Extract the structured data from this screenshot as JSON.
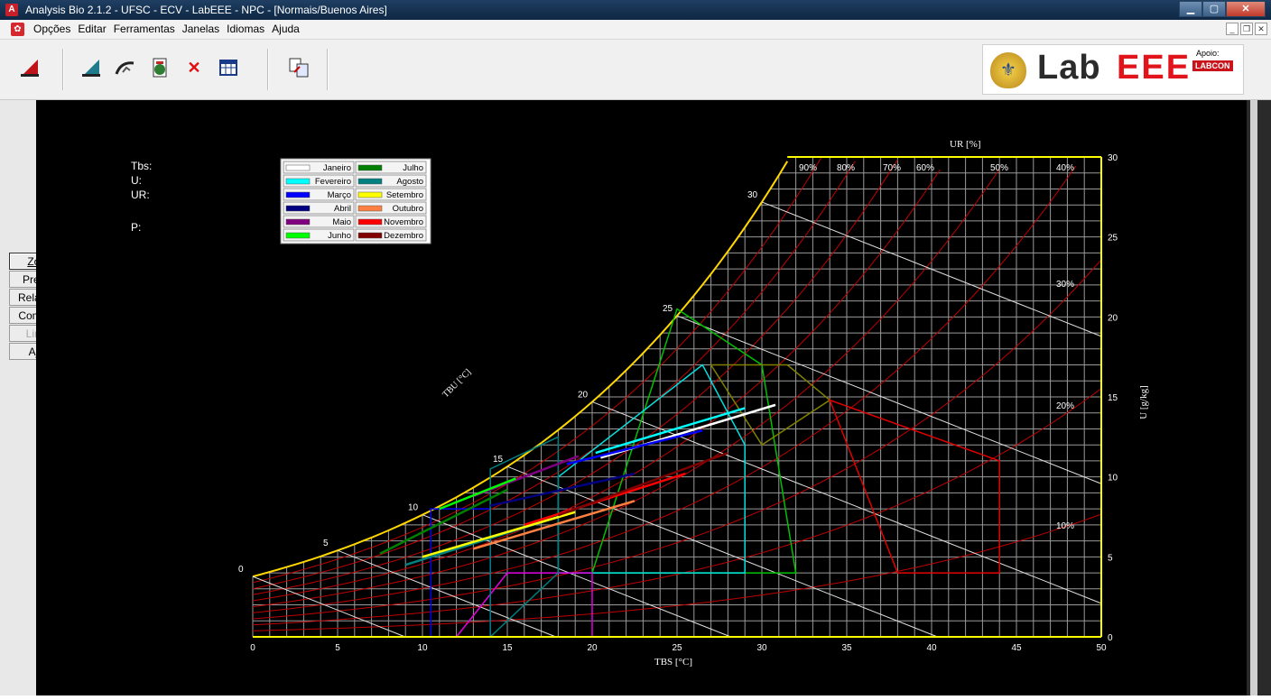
{
  "window": {
    "title": "Analysis Bio 2.1.2 - UFSC - ECV - LabEEE - NPC - [Normais/Buenos Aires]"
  },
  "menu": [
    "Opções",
    "Editar",
    "Ferramentas",
    "Janelas",
    "Idiomas",
    "Ajuda"
  ],
  "logo": {
    "lab": "Lab",
    "eee": "EEE",
    "apoio": "Apoio:",
    "labcon": "LABCON"
  },
  "side_buttons": [
    {
      "label": "Zonas",
      "state": "active"
    },
    {
      "label": "Pressão",
      "state": "normal"
    },
    {
      "label": "Relatorios",
      "state": "normal"
    },
    {
      "label": "Comparar",
      "state": "normal"
    },
    {
      "label": "Limpar",
      "state": "disabled"
    },
    {
      "label": "Ajuda",
      "state": "normal"
    }
  ],
  "readout": {
    "tbs": "Tbs:",
    "u": "U:",
    "ur": "UR:",
    "p": "P:"
  },
  "legend": [
    {
      "name": "Janeiro",
      "color": "#ffffff"
    },
    {
      "name": "Julho",
      "color": "#008000"
    },
    {
      "name": "Fevereiro",
      "color": "#00ffff"
    },
    {
      "name": "Agosto",
      "color": "#008080"
    },
    {
      "name": "Março",
      "color": "#0000ff"
    },
    {
      "name": "Setembro",
      "color": "#ffff00"
    },
    {
      "name": "Abril",
      "color": "#000080"
    },
    {
      "name": "Outubro",
      "color": "#ff8040"
    },
    {
      "name": "Maio",
      "color": "#800080"
    },
    {
      "name": "Novembro",
      "color": "#ff0000"
    },
    {
      "name": "Junho",
      "color": "#00ff00"
    },
    {
      "name": "Dezembro",
      "color": "#800000"
    }
  ],
  "chart_data": {
    "type": "psychrometric",
    "xlabel": "TBS [°C]",
    "ylabel": "U [g/kg]",
    "wet_bulb_label": "TBU [°C]",
    "rh_label": "UR [%]",
    "xlim": [
      0,
      50
    ],
    "ylim": [
      0,
      30
    ],
    "x_ticks": [
      0,
      5,
      10,
      15,
      20,
      25,
      30,
      35,
      40,
      45,
      50
    ],
    "y_ticks": [
      0,
      5,
      10,
      15,
      20,
      25,
      30
    ],
    "wet_bulb_ticks": [
      0,
      5,
      10,
      15,
      20,
      25,
      30
    ],
    "rh_top_labels": [
      "90%",
      "80%",
      "70%",
      "60%",
      "50%",
      "40%"
    ],
    "rh_side_labels": [
      "30%",
      "20%",
      "10%"
    ],
    "grid": true,
    "monthly_lines": [
      {
        "month": "Janeiro",
        "color": "#ffffff",
        "from": [
          20.5,
          11.2
        ],
        "to": [
          30.8,
          14.5
        ]
      },
      {
        "month": "Fevereiro",
        "color": "#00ffff",
        "from": [
          20.2,
          11.5
        ],
        "to": [
          29.0,
          14.3
        ]
      },
      {
        "month": "Março",
        "color": "#0000ff",
        "from": [
          18.5,
          10.8
        ],
        "to": [
          26.5,
          12.9
        ]
      },
      {
        "month": "Abril",
        "color": "#000080",
        "from": [
          14.0,
          8.2
        ],
        "to": [
          22.5,
          10.2
        ]
      },
      {
        "month": "Maio",
        "color": "#800080",
        "from": [
          13.0,
          8.8
        ],
        "to": [
          19.2,
          11.3
        ]
      },
      {
        "month": "Junho",
        "color": "#00ff00",
        "from": [
          11.0,
          8.0
        ],
        "to": [
          15.5,
          9.9
        ]
      },
      {
        "month": "Julho",
        "color": "#008000",
        "from": [
          7.5,
          5.2
        ],
        "to": [
          15.0,
          9.2
        ]
      },
      {
        "month": "Agosto",
        "color": "#008080",
        "from": [
          9.0,
          4.5
        ],
        "to": [
          18.0,
          7.5
        ]
      },
      {
        "month": "Setembro",
        "color": "#ffff00",
        "from": [
          10.0,
          5.0
        ],
        "to": [
          19.0,
          7.8
        ]
      },
      {
        "month": "Outubro",
        "color": "#ff8040",
        "from": [
          13.0,
          5.5
        ],
        "to": [
          22.5,
          8.5
        ]
      },
      {
        "month": "Novembro",
        "color": "#ff0000",
        "from": [
          16.0,
          7.0
        ],
        "to": [
          25.5,
          10.2
        ]
      },
      {
        "month": "Dezembro",
        "color": "#800000",
        "from": [
          18.0,
          7.6
        ],
        "to": [
          28.0,
          11.5
        ]
      }
    ]
  }
}
